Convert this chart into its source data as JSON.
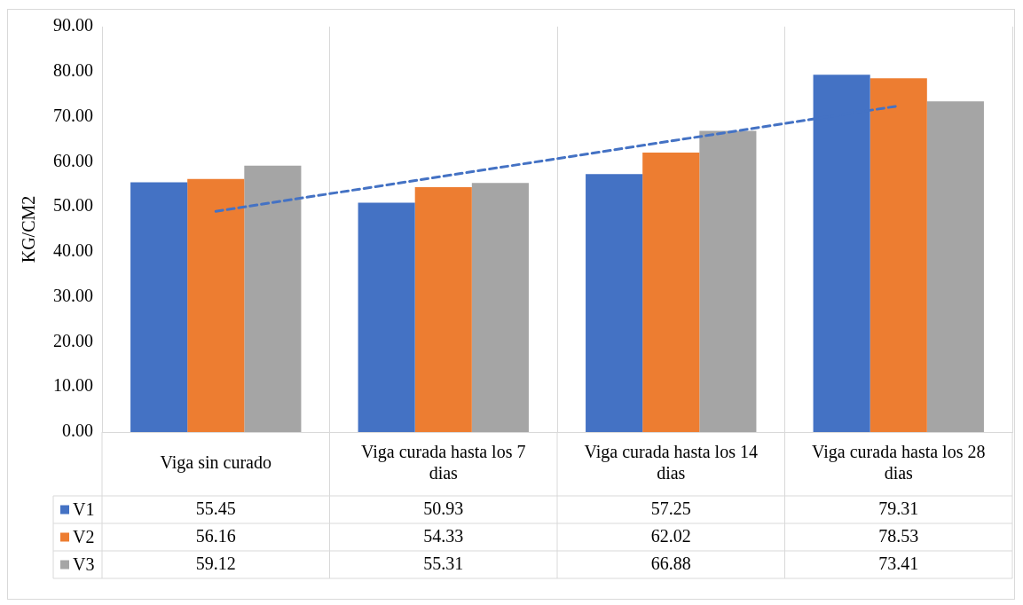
{
  "chart_data": {
    "type": "bar",
    "ylabel": "KG/CM2",
    "categories": [
      "Viga sin curado",
      "Viga curada hasta los 7 dias",
      "Viga curada hasta los 14 dias",
      "Viga curada hasta los 28 dias"
    ],
    "series": [
      {
        "name": "V1",
        "color": "#4472c4",
        "values": [
          55.45,
          50.93,
          57.25,
          79.31
        ],
        "value_labels": [
          "55.45",
          "50.93",
          "57.25",
          "79.31"
        ]
      },
      {
        "name": "V2",
        "color": "#ed7d31",
        "values": [
          56.16,
          54.33,
          62.02,
          78.53
        ],
        "value_labels": [
          "56.16",
          "54.33",
          "62.02",
          "78.53"
        ]
      },
      {
        "name": "V3",
        "color": "#a5a5a5",
        "values": [
          59.12,
          55.31,
          66.88,
          73.41
        ],
        "value_labels": [
          "59.12",
          "55.31",
          "66.88",
          "73.41"
        ]
      },
      {
        "type": "line",
        "color": "#4472c4",
        "line_style": "dashed",
        "marker": "none",
        "values": [
          49.0,
          56.8,
          64.6,
          72.4
        ]
      }
    ],
    "ylim": [
      0,
      90
    ],
    "yticks": [
      {
        "value": 0,
        "label": "0.00"
      },
      {
        "value": 10,
        "label": "10.00"
      },
      {
        "value": 20,
        "label": "20.00"
      },
      {
        "value": 30,
        "label": "30.00"
      },
      {
        "value": 40,
        "label": "40.00"
      },
      {
        "value": 50,
        "label": "50.00"
      },
      {
        "value": 60,
        "label": "60.00"
      },
      {
        "value": 70,
        "label": "70.00"
      },
      {
        "value": 80,
        "label": "80.00"
      },
      {
        "value": 90,
        "label": "90.00"
      }
    ],
    "grid": "x",
    "legend": "bottom"
  }
}
